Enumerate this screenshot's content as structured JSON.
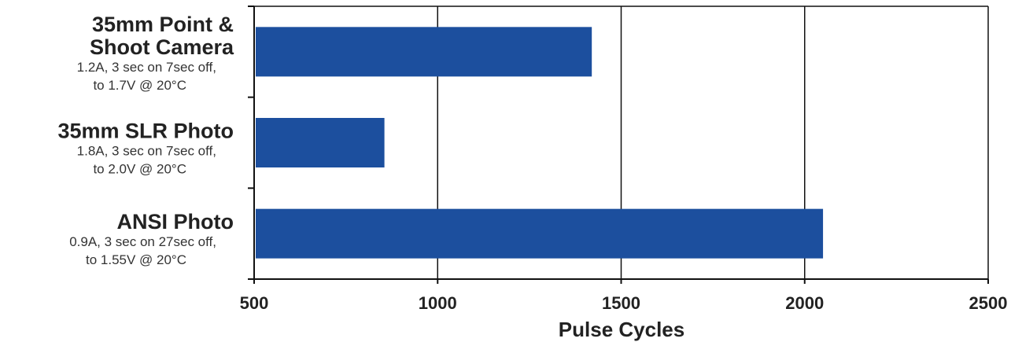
{
  "chart_data": {
    "type": "bar",
    "orientation": "horizontal",
    "categories": [
      {
        "title_lines": [
          "35mm Point &",
          "Shoot Camera"
        ],
        "subtitle_lines": [
          "1.2A, 3 sec on 7sec off,",
          "to 1.7V @ 20°C"
        ]
      },
      {
        "title_lines": [
          "35mm SLR Photo"
        ],
        "subtitle_lines": [
          "1.8A, 3 sec on 7sec off,",
          "to 2.0V @ 20°C"
        ]
      },
      {
        "title_lines": [
          "ANSI Photo"
        ],
        "subtitle_lines": [
          "0.9A, 3 sec on 27sec off,",
          "to 1.55V @ 20°C"
        ]
      }
    ],
    "values": [
      1420,
      855,
      2050
    ],
    "xlabel": "Pulse Cycles",
    "xlim": [
      500,
      2500
    ],
    "xticks": [
      500,
      1000,
      1500,
      2000,
      2500
    ],
    "grid": "vertical",
    "legend": "none",
    "bar_color": "#1c4f9e",
    "grid_color": "#111111"
  }
}
